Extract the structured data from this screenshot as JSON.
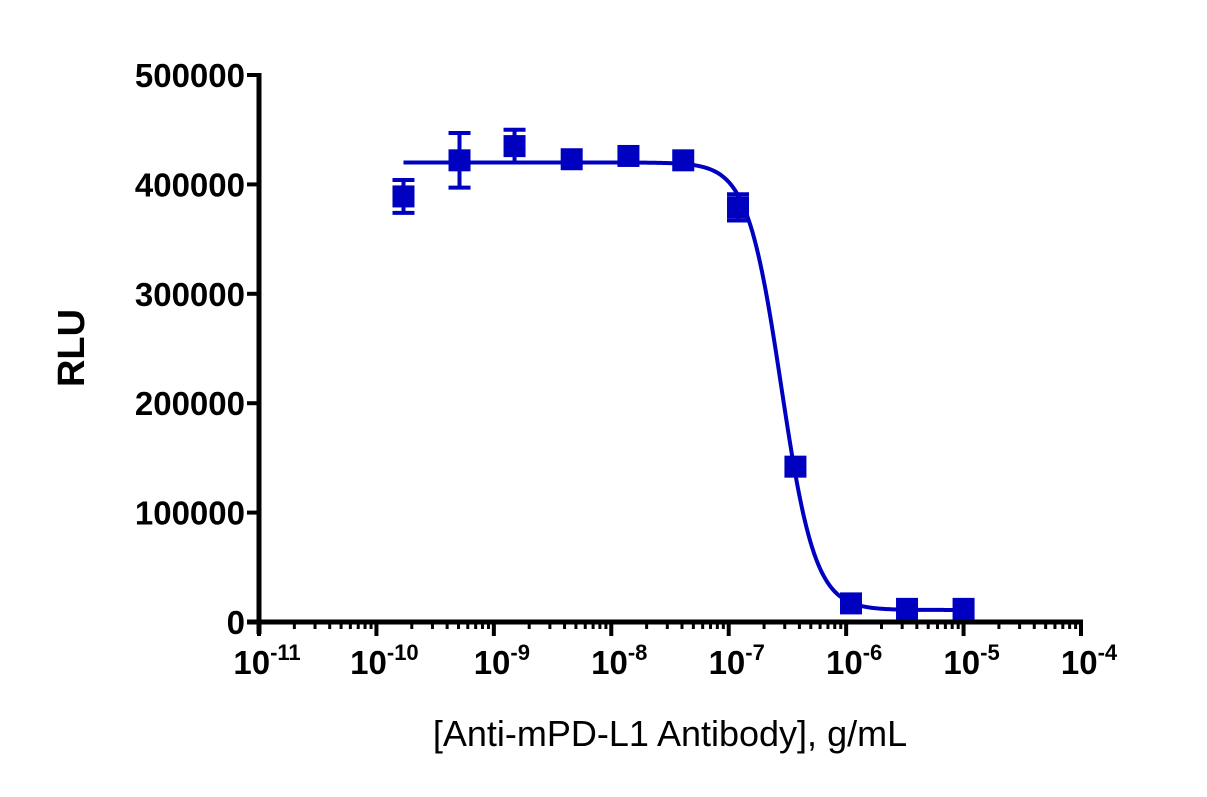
{
  "chart_data": {
    "type": "scatter",
    "title": "",
    "xlabel": "[Anti-mPD-L1 Antibody], g/mL",
    "ylabel": "RLU",
    "xscale": "log",
    "xlim": [
      1e-11,
      0.0001
    ],
    "ylim": [
      0,
      500000
    ],
    "x_tick_labels": [
      {
        "base": "10",
        "exp": "-11"
      },
      {
        "base": "10",
        "exp": "-10"
      },
      {
        "base": "10",
        "exp": "-9"
      },
      {
        "base": "10",
        "exp": "-8"
      },
      {
        "base": "10",
        "exp": "-7"
      },
      {
        "base": "10",
        "exp": "-6"
      },
      {
        "base": "10",
        "exp": "-5"
      },
      {
        "base": "10",
        "exp": "-4"
      }
    ],
    "y_tick_labels": [
      "0",
      "100000",
      "200000",
      "300000",
      "400000",
      "500000"
    ],
    "grid": false,
    "legend": null,
    "color": "#0000c0",
    "series": [
      {
        "name": "Anti-mPD-L1 Antibody",
        "marker": "square",
        "x": [
          1.7e-10,
          5.1e-10,
          1.5e-09,
          4.6e-09,
          1.4e-08,
          4.1e-08,
          1.2e-07,
          3.7e-07,
          1.1e-06,
          3.3e-06,
          1e-05
        ],
        "y": [
          389000,
          422000,
          435000,
          423000,
          426000,
          422000,
          379000,
          142000,
          17000,
          12000,
          12000
        ],
        "yerr": [
          15000,
          25000,
          15000,
          4000,
          4000,
          4000,
          12000,
          4000,
          3000,
          3000,
          3000
        ]
      }
    ],
    "fit": {
      "type": "4PL",
      "top": 420000,
      "bottom": 11000,
      "ec50": 2.8e-07,
      "hill": -3.0
    }
  }
}
